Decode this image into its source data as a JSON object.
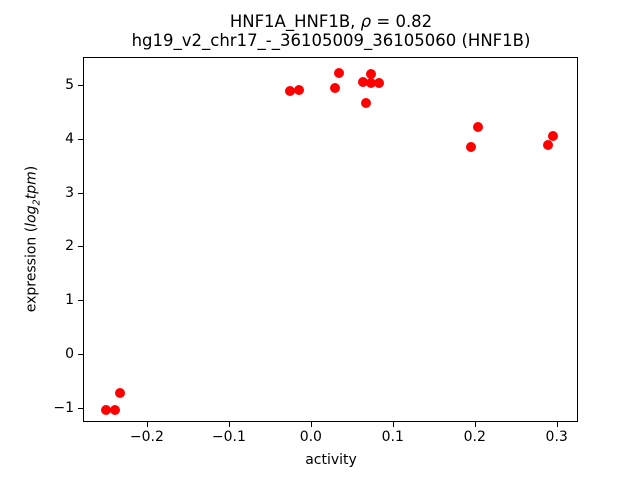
{
  "chart_data": {
    "type": "scatter",
    "title": "HNF1A_HNF1B, ρ = 0.82",
    "title_parts": {
      "main": "HNF1A_HNF1B, ",
      "rho": "ρ",
      "rest": " = 0.82"
    },
    "subtitle": "hg19_v2_chr17_-_36105009_36105060 (HNF1B)",
    "xlabel": "activity",
    "ylabel": {
      "prefix": "expression (",
      "math_pre": "log",
      "math_sub": "2",
      "math_post": "tpm",
      "suffix": ")"
    },
    "marker_color": "#ff0000",
    "background_color": "#ffffff",
    "grid": false,
    "legend": null,
    "xlim": [
      -0.278,
      0.326
    ],
    "ylim": [
      -1.26,
      5.52
    ],
    "xticks": [
      {
        "v": -0.2,
        "label": "−0.2"
      },
      {
        "v": -0.1,
        "label": "−0.1"
      },
      {
        "v": 0.0,
        "label": "0.0"
      },
      {
        "v": 0.1,
        "label": "0.1"
      },
      {
        "v": 0.2,
        "label": "0.2"
      },
      {
        "v": 0.3,
        "label": "0.3"
      }
    ],
    "yticks": [
      {
        "v": 5,
        "label": "5"
      },
      {
        "v": 4,
        "label": "4"
      },
      {
        "v": 3,
        "label": "3"
      },
      {
        "v": 2,
        "label": "2"
      },
      {
        "v": 1,
        "label": "1"
      },
      {
        "v": 0,
        "label": "0"
      },
      {
        "v": -1,
        "label": "−1"
      }
    ],
    "points": [
      [
        -0.25,
        -1.04
      ],
      [
        -0.239,
        -1.04
      ],
      [
        -0.233,
        -0.72
      ],
      [
        -0.026,
        4.88
      ],
      [
        -0.015,
        4.91
      ],
      [
        0.029,
        4.94
      ],
      [
        0.034,
        5.22
      ],
      [
        0.064,
        5.06
      ],
      [
        0.067,
        4.67
      ],
      [
        0.073,
        5.21
      ],
      [
        0.074,
        5.03
      ],
      [
        0.083,
        5.03
      ],
      [
        0.195,
        3.85
      ],
      [
        0.204,
        4.22
      ],
      [
        0.289,
        3.88
      ],
      [
        0.296,
        4.06
      ]
    ]
  }
}
